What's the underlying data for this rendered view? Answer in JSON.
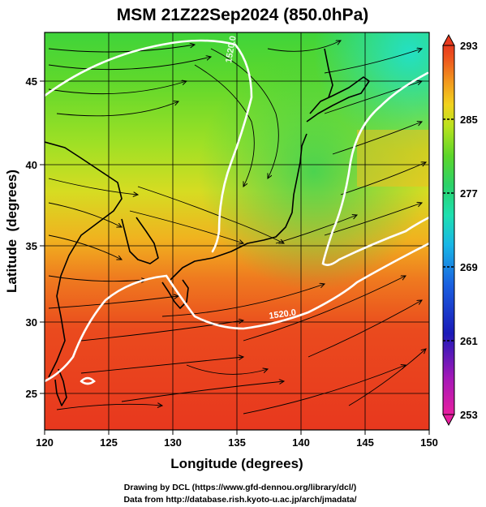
{
  "title": "MSM 21Z22Sep2024 (850.0hPa)",
  "xlabel": "Longitude (degrees)",
  "ylabel": "Latitude  (degrees)",
  "x_ticks": [
    "120",
    "125",
    "130",
    "135",
    "140",
    "145",
    "150"
  ],
  "y_ticks": [
    "25",
    "30",
    "35",
    "40",
    "45"
  ],
  "colorbar": {
    "ticks": [
      "293",
      "285",
      "277",
      "269",
      "261",
      "253"
    ],
    "min": 253,
    "max": 293,
    "colors": [
      "#e81fa0",
      "#a318b8",
      "#1a1ab8",
      "#1a5fe0",
      "#19b7e6",
      "#1ee0b0",
      "#2bd26a",
      "#5cd62a",
      "#b8e21e",
      "#f2d21e",
      "#f29a1e",
      "#ee5a1e",
      "#e83a1e"
    ]
  },
  "contour_labels": [
    "1520.0",
    "1520.0"
  ],
  "credits": {
    "line1": "Drawing by DCL (https://www.gfd-dennou.org/library/dcl/)",
    "line2": "Data from http://database.rish.kyoto-u.ac.jp/arch/jmadata/"
  },
  "chart_data": {
    "type": "heatmap",
    "variable": "temperature (K) with wind streamlines",
    "xlim": [
      120,
      150
    ],
    "ylim": [
      23,
      48
    ],
    "grid": true
  }
}
